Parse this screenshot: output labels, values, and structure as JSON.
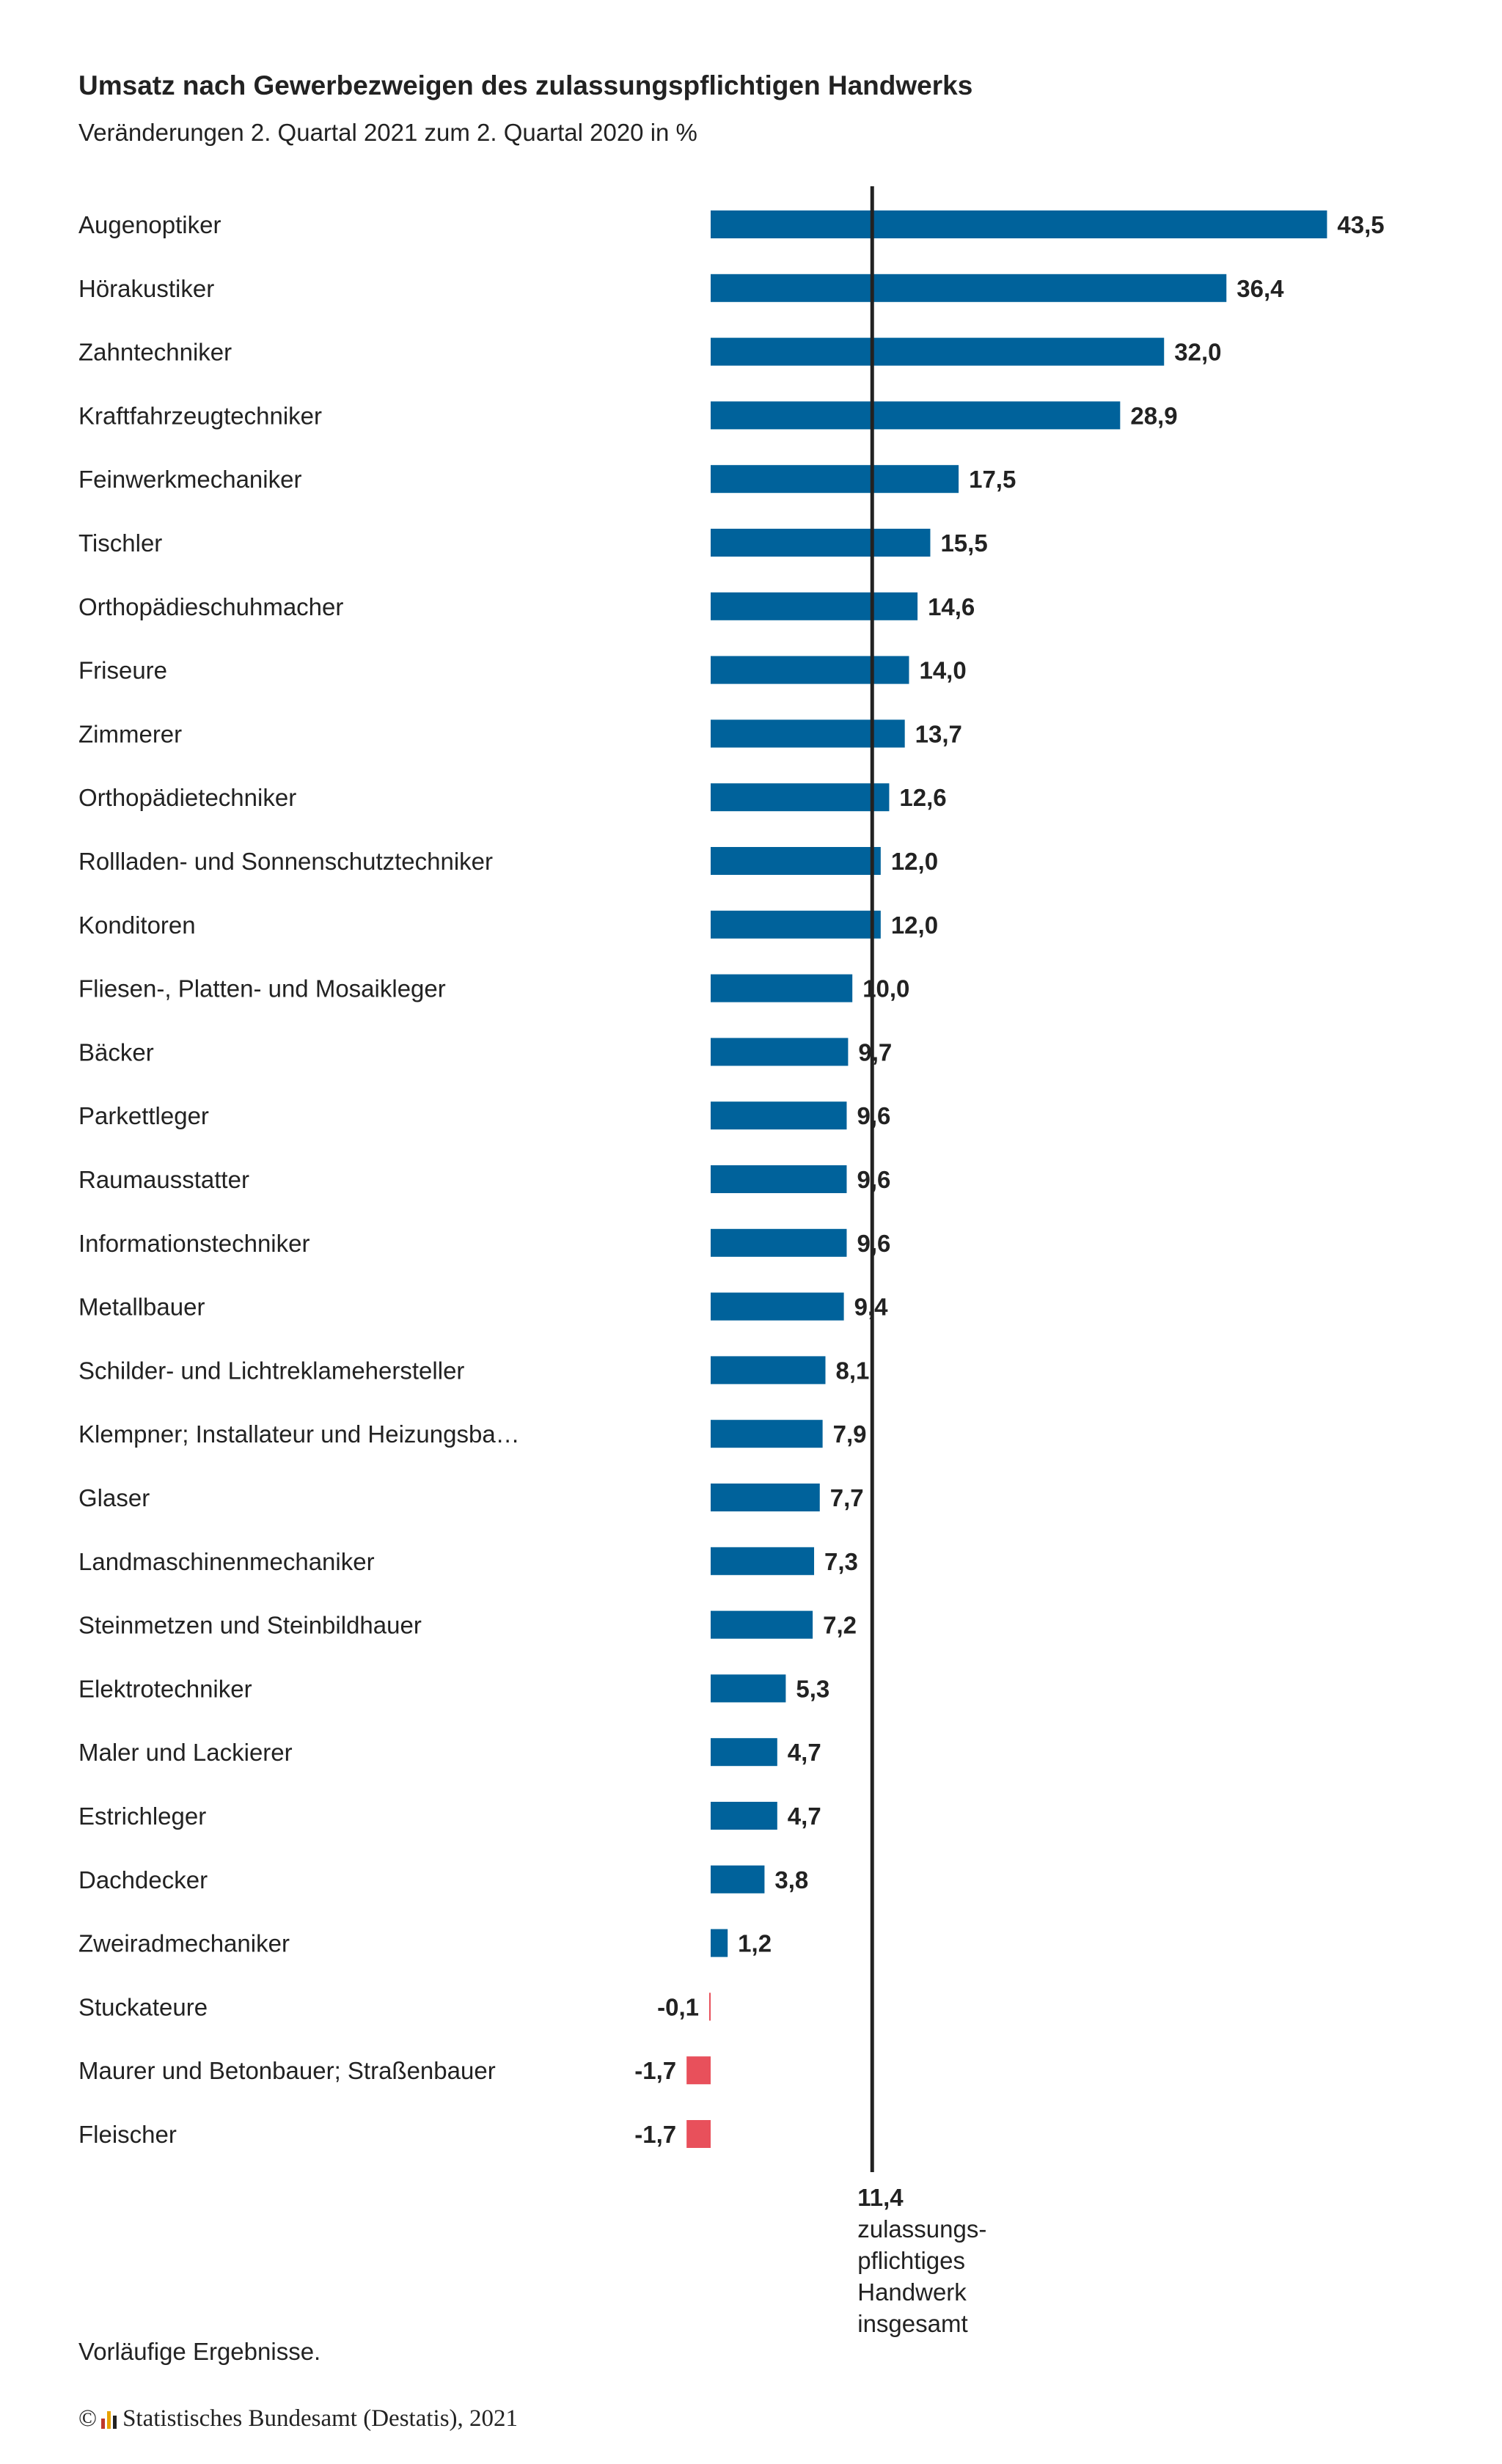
{
  "header": {
    "title": "Umsatz nach Gewerbezweigen des zulassungspflichtigen Handwerks",
    "subtitle": "Veränderungen 2. Quartal 2021 zum 2. Quartal 2020 in %"
  },
  "chart_data": {
    "type": "bar",
    "orientation": "horizontal",
    "title": "Umsatz nach Gewerbezweigen des zulassungspflichtigen Handwerks",
    "subtitle": "Veränderungen 2. Quartal 2021 zum 2. Quartal 2020 in %",
    "categories": [
      "Augenoptiker",
      "Hörakustiker",
      "Zahntechniker",
      "Kraftfahrzeugtechniker",
      "Feinwerkmechaniker",
      "Tischler",
      "Orthopädieschuhmacher",
      "Friseure",
      "Zimmerer",
      "Orthopädietechniker",
      "Rollladen- und Sonnenschutztechniker",
      "Konditoren",
      "Fliesen-, Platten- und Mosaikleger",
      "Bäcker",
      "Parkettleger",
      "Raumausstatter",
      "Informationstechniker",
      "Metallbauer",
      "Schilder- und Lichtreklamehersteller",
      "Klempner; Installateur und Heizungsba…",
      "Glaser",
      "Landmaschinenmechaniker",
      "Steinmetzen und Steinbildhauer",
      "Elektrotechniker",
      "Maler und Lackierer",
      "Estrichleger",
      "Dachdecker",
      "Zweiradmechaniker",
      "Stuckateure",
      "Maurer und Betonbauer; Straßenbauer",
      "Fleischer"
    ],
    "values": [
      43.5,
      36.4,
      32.0,
      28.9,
      17.5,
      15.5,
      14.6,
      14.0,
      13.7,
      12.6,
      12.0,
      12.0,
      10.0,
      9.7,
      9.6,
      9.6,
      9.6,
      9.4,
      8.1,
      7.9,
      7.7,
      7.3,
      7.2,
      5.3,
      4.7,
      4.7,
      3.8,
      1.2,
      -0.1,
      -1.7,
      -1.7
    ],
    "value_labels": [
      "43,5",
      "36,4",
      "32,0",
      "28,9",
      "17,5",
      "15,5",
      "14,6",
      "14,0",
      "13,7",
      "12,6",
      "12,0",
      "12,0",
      "10,0",
      "9,7",
      "9,6",
      "9,6",
      "9,6",
      "9,4",
      "8,1",
      "7,9",
      "7,7",
      "7,3",
      "7,2",
      "5,3",
      "4,7",
      "4,7",
      "3,8",
      "1,2",
      "-0,1",
      "-1,7",
      "-1,7"
    ],
    "reference_line": {
      "value": 11.4,
      "value_label": "11,4",
      "label_lines": [
        "zulassungs-",
        "pflichtiges",
        "Handwerk",
        "insgesamt"
      ]
    },
    "colors": {
      "positive": "#00629b",
      "negative": "#e8505b",
      "reference": "#222222"
    },
    "xlabel": "",
    "ylabel": "",
    "xlim": [
      -1.7,
      43.5
    ]
  },
  "footnote": "Vorläufige Ergebnisse.",
  "copyright": {
    "symbol": "©",
    "text": "Statistisches Bundesamt (Destatis), 2021",
    "logo_colors": [
      "#c0392b",
      "#e8a200",
      "#222222"
    ]
  }
}
